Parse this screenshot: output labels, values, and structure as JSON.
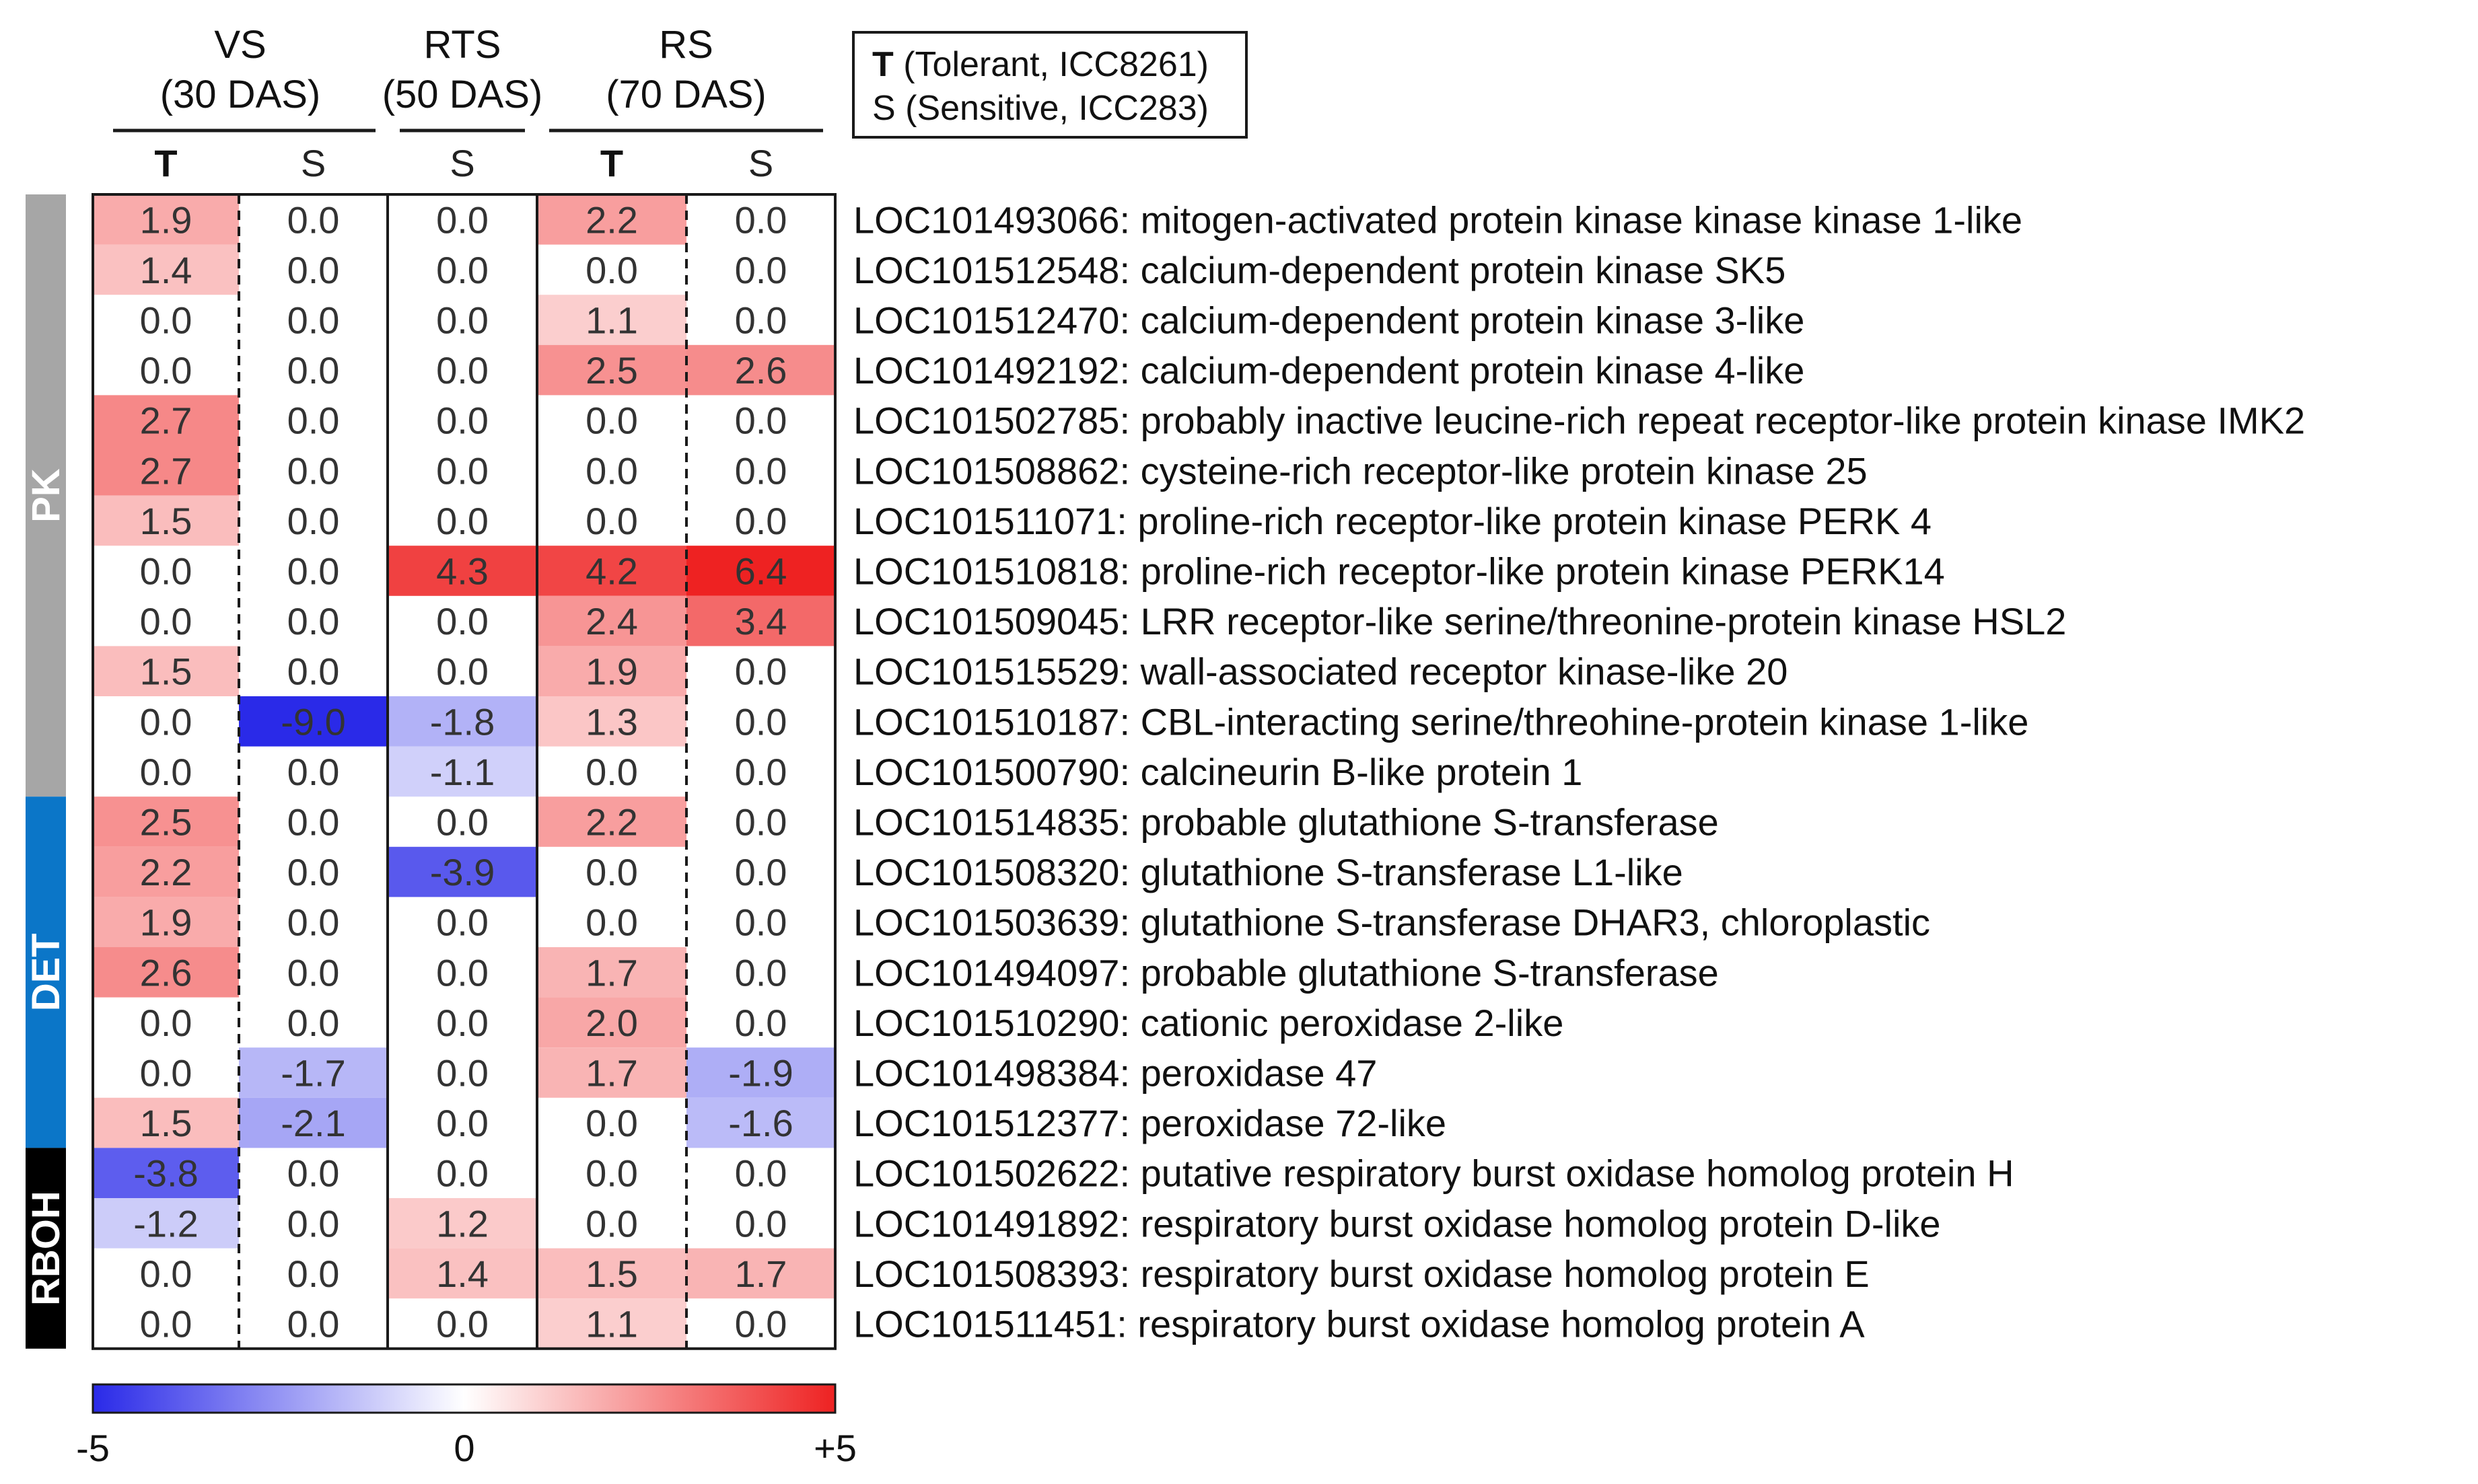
{
  "legend_box": {
    "tolerant_key": "T",
    "tolerant_text": " (Tolerant, ICC8261)",
    "sensitive_text": "S (Sensitive, ICC283)"
  },
  "color_scale": {
    "min_label": "-5",
    "mid_label": "0",
    "max_label": "+5",
    "low_color": "#2a2ae8",
    "mid_color": "#ffffff",
    "high_color": "#ee2222"
  },
  "chart_data": {
    "type": "heatmap",
    "title": "",
    "stage_groups": [
      {
        "name": "VS",
        "sub": "(30 DAS)",
        "columns": [
          0,
          1
        ]
      },
      {
        "name": "RTS",
        "sub": "(50 DAS)",
        "columns": [
          2
        ]
      },
      {
        "name": "RS",
        "sub": "(70 DAS)",
        "columns": [
          3,
          4
        ]
      }
    ],
    "columns": [
      {
        "label": "T",
        "bold": true
      },
      {
        "label": "S",
        "bold": false
      },
      {
        "label": "S",
        "bold": false
      },
      {
        "label": "T",
        "bold": true
      },
      {
        "label": "S",
        "bold": false
      }
    ],
    "row_groups": [
      {
        "label": "PK",
        "rows": [
          0,
          11
        ],
        "color": "#a6a6a6"
      },
      {
        "label": "DET",
        "rows": [
          12,
          18
        ],
        "color": "#0b76c8"
      },
      {
        "label": "RBOH",
        "rows": [
          19,
          22
        ],
        "color": "#000000"
      }
    ],
    "rows": [
      {
        "gene": "LOC101493066: mitogen-activated protein kinase kinase kinase 1-like",
        "values": [
          "1.9",
          "0.0",
          "0.0",
          "2.2",
          "0.0"
        ]
      },
      {
        "gene": "LOC101512548: calcium-dependent protein kinase SK5",
        "values": [
          "1.4",
          "0.0",
          "0.0",
          "0.0",
          "0.0"
        ]
      },
      {
        "gene": "LOC101512470: calcium-dependent protein kinase 3-like",
        "values": [
          "0.0",
          "0.0",
          "0.0",
          "1.1",
          "0.0"
        ]
      },
      {
        "gene": "LOC101492192: calcium-dependent protein kinase 4-like",
        "values": [
          "0.0",
          "0.0",
          "0.0",
          "2.5",
          "2.6"
        ]
      },
      {
        "gene": "LOC101502785: probably inactive leucine-rich repeat receptor-like protein kinase IMK2",
        "values": [
          "2.7",
          "0.0",
          "0.0",
          "0.0",
          "0.0"
        ]
      },
      {
        "gene": "LOC101508862: cysteine-rich receptor-like protein kinase 25",
        "values": [
          "2.7",
          "0.0",
          "0.0",
          "0.0",
          "0.0"
        ]
      },
      {
        "gene": "LOC101511071: proline-rich receptor-like protein kinase PERK 4",
        "values": [
          "1.5",
          "0.0",
          "0.0",
          "0.0",
          "0.0"
        ]
      },
      {
        "gene": "LOC101510818: proline-rich receptor-like protein kinase PERK14",
        "values": [
          "0.0",
          "0.0",
          "4.3",
          "4.2",
          "6.4"
        ]
      },
      {
        "gene": "LOC101509045: LRR receptor-like serine/threonine-protein kinase HSL2",
        "values": [
          "0.0",
          "0.0",
          "0.0",
          "2.4",
          "3.4"
        ]
      },
      {
        "gene": "LOC101515529: wall-associated receptor kinase-like 20",
        "values": [
          "1.5",
          "0.0",
          "0.0",
          "1.9",
          "0.0"
        ]
      },
      {
        "gene": "LOC101510187: CBL-interacting serine/threohine-protein kinase 1-like",
        "values": [
          "0.0",
          "-9.0",
          "-1.8",
          "1.3",
          "0.0"
        ]
      },
      {
        "gene": "LOC101500790: calcineurin B-like protein 1",
        "values": [
          "0.0",
          "0.0",
          "-1.1",
          "0.0",
          "0.0"
        ]
      },
      {
        "gene": "LOC101514835: probable glutathione S-transferase",
        "values": [
          "2.5",
          "0.0",
          "0.0",
          "2.2",
          "0.0"
        ]
      },
      {
        "gene": "LOC101508320: glutathione S-transferase L1-like",
        "values": [
          "2.2",
          "0.0",
          "-3.9",
          "0.0",
          "0.0"
        ]
      },
      {
        "gene": "LOC101503639: glutathione S-transferase DHAR3, chloroplastic",
        "values": [
          "1.9",
          "0.0",
          "0.0",
          "0.0",
          "0.0"
        ]
      },
      {
        "gene": "LOC101494097: probable glutathione S-transferase",
        "values": [
          "2.6",
          "0.0",
          "0.0",
          "1.7",
          "0.0"
        ]
      },
      {
        "gene": "LOC101510290: cationic peroxidase 2-like",
        "values": [
          "0.0",
          "0.0",
          "0.0",
          "2.0",
          "0.0"
        ]
      },
      {
        "gene": "LOC101498384: peroxidase 47",
        "values": [
          "0.0",
          "-1.7",
          "0.0",
          "1.7",
          "-1.9"
        ]
      },
      {
        "gene": "LOC101512377: peroxidase 72-like",
        "values": [
          "1.5",
          "-2.1",
          "0.0",
          "0.0",
          "-1.6"
        ]
      },
      {
        "gene": "LOC101502622: putative respiratory burst oxidase homolog protein H",
        "values": [
          "-3.8",
          "0.0",
          "0.0",
          "0.0",
          "0.0"
        ]
      },
      {
        "gene": "LOC101491892: respiratory burst oxidase homolog protein D-like",
        "values": [
          "-1.2",
          "0.0",
          "1.2",
          "0.0",
          "0.0"
        ]
      },
      {
        "gene": "LOC101508393: respiratory burst oxidase homolog protein E",
        "values": [
          "0.0",
          "0.0",
          "1.4",
          "1.5",
          "1.7"
        ]
      },
      {
        "gene": "LOC101511451: respiratory burst oxidase homolog protein A",
        "values": [
          "0.0",
          "0.0",
          "0.0",
          "1.1",
          "0.0"
        ]
      }
    ],
    "scale_range": [
      -5,
      5
    ]
  }
}
